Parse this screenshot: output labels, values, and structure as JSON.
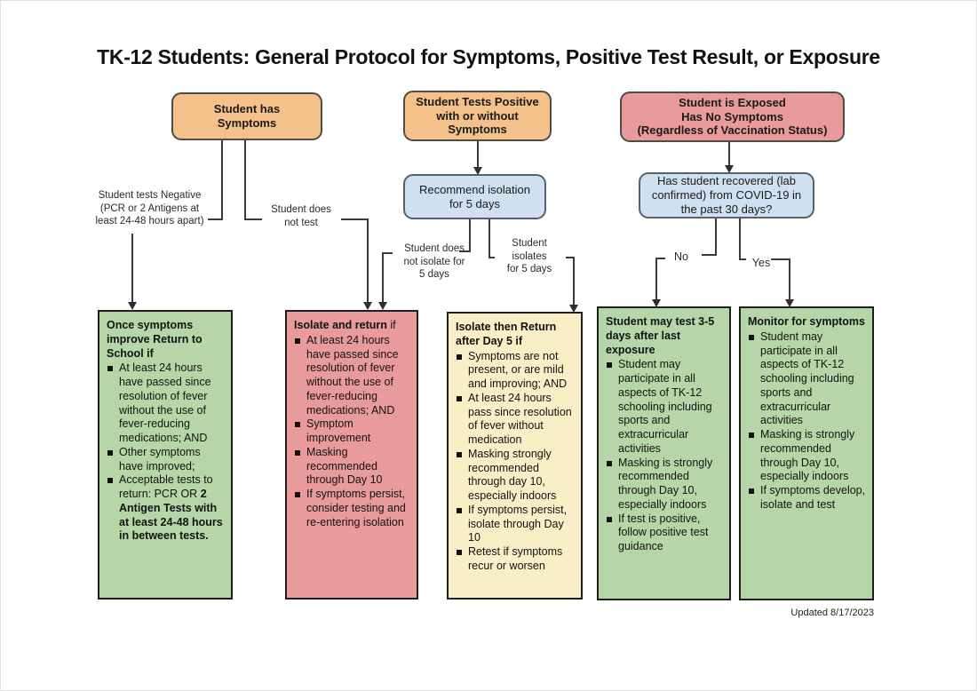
{
  "title": "TK-12 Students: General Protocol for Symptoms, Positive Test Result, or Exposure",
  "footer": {
    "updated": "Updated 8/17/2023"
  },
  "colors": {
    "orange": "#f3c189",
    "pink": "#e99b9b",
    "blue": "#cfe0f0",
    "green": "#b6d6a8",
    "yellow": "#faeec6"
  },
  "nodes": {
    "symptoms": {
      "label": "Student has\nSymptoms"
    },
    "positive": {
      "label": "Student Tests Positive\nwith or without\nSymptoms"
    },
    "exposed": {
      "label": "Student is Exposed\nHas No Symptoms\n(Regardless of Vaccination Status)"
    },
    "isolation": {
      "label": "Recommend isolation\nfor 5 days"
    },
    "recovered": {
      "label": "Has student recovered (lab\nconfirmed) from COVID-19 in\nthe past 30 days?"
    }
  },
  "edge_labels": {
    "tests_negative": "Student tests Negative\n(PCR or 2 Antigens at\nleast 24-48 hours apart)",
    "does_not_test": "Student does\nnot test",
    "does_not_isolate": "Student does\nnot isolate for\n5 days",
    "isolates": "Student\nisolates\nfor 5 days",
    "no": "No",
    "yes": "Yes"
  },
  "outcomes": [
    {
      "id": "return-to-school",
      "color": "green",
      "title": [
        {
          "text": "Once symptoms improve Return to School if",
          "bold": true
        }
      ],
      "bullets": [
        [
          {
            "text": "At least 24 hours have passed since resolution of fever without the use of fever-reducing medications; AND",
            "bold": false
          }
        ],
        [
          {
            "text": "Other symptoms have improved;",
            "bold": false
          }
        ],
        [
          {
            "text": "Acceptable tests to return: PCR OR ",
            "bold": false
          },
          {
            "text": "2 Antigen Tests with at least 24-48 hours in between tests.",
            "bold": true
          }
        ]
      ]
    },
    {
      "id": "isolate-and-return",
      "color": "pink",
      "title": [
        {
          "text": "Isolate and return",
          "bold": true
        },
        {
          "text": " if",
          "bold": false
        }
      ],
      "bullets": [
        [
          {
            "text": "At least 24 hours have passed since resolution of fever without the use of fever-reducing medications; AND",
            "bold": false
          }
        ],
        [
          {
            "text": "Symptom improvement",
            "bold": false
          }
        ],
        [
          {
            "text": "Masking recommended through Day 10",
            "bold": false
          }
        ],
        [
          {
            "text": "If symptoms persist, consider testing and re-entering isolation",
            "bold": false
          }
        ]
      ]
    },
    {
      "id": "isolate-then-return",
      "color": "yellow",
      "title": [
        {
          "text": "Isolate then Return after Day 5 if",
          "bold": true
        }
      ],
      "bullets": [
        [
          {
            "text": "Symptoms are not present, or are mild and improving; AND",
            "bold": false
          }
        ],
        [
          {
            "text": "At least 24 hours pass since resolution of fever without medication",
            "bold": false
          }
        ],
        [
          {
            "text": "Masking strongly recommended through day 10, especially indoors",
            "bold": false
          }
        ],
        [
          {
            "text": "If symptoms persist, isolate through Day 10",
            "bold": false
          }
        ],
        [
          {
            "text": "Retest if symptoms recur or worsen",
            "bold": false
          }
        ]
      ]
    },
    {
      "id": "may-test-3-5-days",
      "color": "green",
      "title": [
        {
          "text": "Student may test 3-5 days after last exposure",
          "bold": true
        }
      ],
      "bullets": [
        [
          {
            "text": "Student may participate in all aspects of TK-12 schooling including sports and extracurricular activities",
            "bold": false
          }
        ],
        [
          {
            "text": "Masking is strongly recommended through Day 10, especially indoors",
            "bold": false
          }
        ],
        [
          {
            "text": "If test is positive, follow positive test guidance",
            "bold": false
          }
        ]
      ]
    },
    {
      "id": "monitor-for-symptoms",
      "color": "green",
      "title": [
        {
          "text": "Monitor for symptoms",
          "bold": true
        }
      ],
      "bullets": [
        [
          {
            "text": "Student may participate in all aspects of TK-12 schooling including sports and extracurricular activities",
            "bold": false
          }
        ],
        [
          {
            "text": "Masking is strongly recommended through Day 10, especially indoors",
            "bold": false
          }
        ],
        [
          {
            "text": "If symptoms develop, isolate and test",
            "bold": false
          }
        ]
      ]
    }
  ]
}
